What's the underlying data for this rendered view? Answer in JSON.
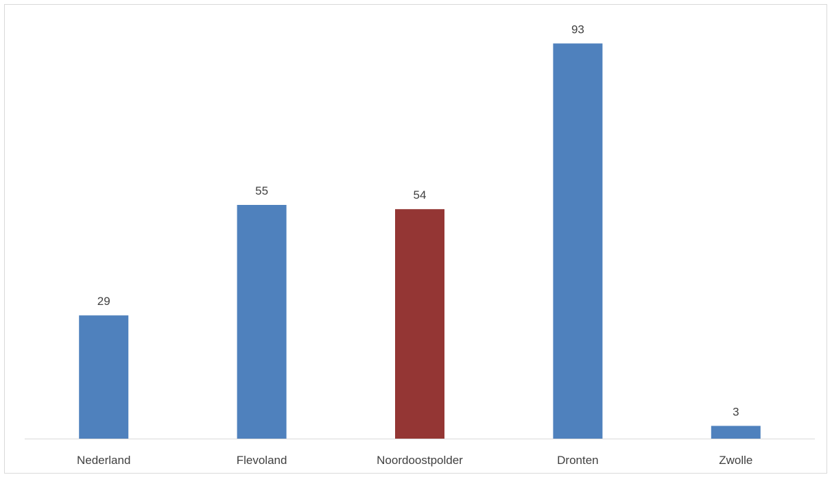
{
  "chart_data": {
    "type": "bar",
    "title": "",
    "xlabel": "",
    "ylabel": "",
    "categories": [
      "Nederland",
      "Flevoland",
      "Noordoostpolder",
      "Dronten",
      "Zwolle"
    ],
    "values": [
      29,
      55,
      54,
      93,
      3
    ],
    "data_labels": [
      "29",
      "55",
      "54",
      "93",
      "3"
    ],
    "ylim": [
      0,
      100
    ],
    "grid": false,
    "legend": "none",
    "colors": {
      "default": "#4f81bd",
      "highlight": "#943634",
      "axis": "#d9d9d9",
      "text": "#404040",
      "border": "#d9d9d9"
    },
    "highlight_index": 2
  }
}
